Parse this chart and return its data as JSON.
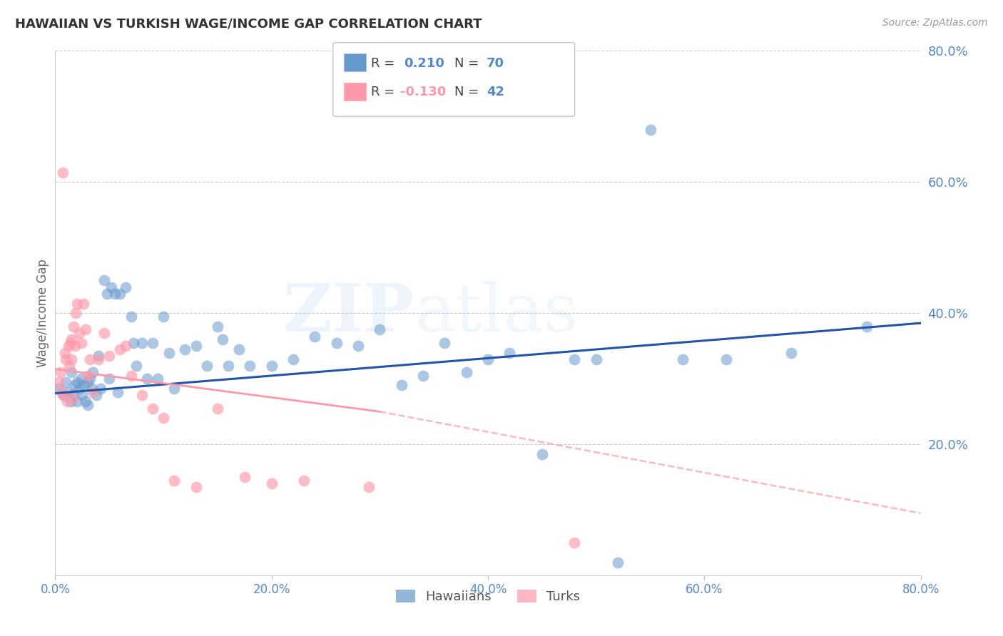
{
  "title": "HAWAIIAN VS TURKISH WAGE/INCOME GAP CORRELATION CHART",
  "source": "Source: ZipAtlas.com",
  "ylabel": "Wage/Income Gap",
  "xlim": [
    0.0,
    0.8
  ],
  "ylim": [
    0.0,
    0.8
  ],
  "xticks": [
    0.0,
    0.2,
    0.4,
    0.6,
    0.8
  ],
  "xtick_labels": [
    "0.0%",
    "20.0%",
    "40.0%",
    "60.0%",
    "80.0%"
  ],
  "right_yticks": [
    0.2,
    0.4,
    0.6,
    0.8
  ],
  "right_ytick_labels": [
    "20.0%",
    "40.0%",
    "60.0%",
    "80.0%"
  ],
  "hawaii_color": "#6699CC",
  "turk_color": "#FF99AA",
  "trend_hawaii_color": "#2255AA",
  "trend_turk_color": "#FF99AA",
  "watermark_zip_color": "#aaccee",
  "background_color": "#ffffff",
  "grid_color": "#cccccc",
  "axis_label_color": "#5588cc",
  "title_color": "#333333",
  "legend_hawaii_label": "Hawaiians",
  "legend_turk_label": "Turks",
  "hawaii_scatter_x": [
    0.003,
    0.008,
    0.01,
    0.012,
    0.014,
    0.015,
    0.016,
    0.018,
    0.02,
    0.02,
    0.022,
    0.024,
    0.025,
    0.026,
    0.028,
    0.03,
    0.03,
    0.032,
    0.034,
    0.035,
    0.038,
    0.04,
    0.042,
    0.045,
    0.048,
    0.05,
    0.052,
    0.055,
    0.058,
    0.06,
    0.065,
    0.07,
    0.072,
    0.075,
    0.08,
    0.085,
    0.09,
    0.095,
    0.1,
    0.105,
    0.11,
    0.12,
    0.13,
    0.14,
    0.15,
    0.155,
    0.16,
    0.17,
    0.18,
    0.2,
    0.22,
    0.24,
    0.26,
    0.28,
    0.3,
    0.32,
    0.34,
    0.36,
    0.38,
    0.4,
    0.42,
    0.45,
    0.48,
    0.5,
    0.52,
    0.55,
    0.58,
    0.62,
    0.68,
    0.75
  ],
  "hawaii_scatter_y": [
    0.285,
    0.275,
    0.295,
    0.28,
    0.265,
    0.31,
    0.275,
    0.29,
    0.295,
    0.265,
    0.285,
    0.3,
    0.275,
    0.29,
    0.265,
    0.295,
    0.26,
    0.3,
    0.285,
    0.31,
    0.275,
    0.335,
    0.285,
    0.45,
    0.43,
    0.3,
    0.44,
    0.43,
    0.28,
    0.43,
    0.44,
    0.395,
    0.355,
    0.32,
    0.355,
    0.3,
    0.355,
    0.3,
    0.395,
    0.34,
    0.285,
    0.345,
    0.35,
    0.32,
    0.38,
    0.36,
    0.32,
    0.345,
    0.32,
    0.32,
    0.33,
    0.365,
    0.355,
    0.35,
    0.375,
    0.29,
    0.305,
    0.355,
    0.31,
    0.33,
    0.34,
    0.185,
    0.33,
    0.33,
    0.02,
    0.68,
    0.33,
    0.33,
    0.34,
    0.38
  ],
  "turk_scatter_x": [
    0.003,
    0.005,
    0.006,
    0.007,
    0.008,
    0.009,
    0.01,
    0.011,
    0.012,
    0.013,
    0.014,
    0.015,
    0.015,
    0.016,
    0.017,
    0.018,
    0.019,
    0.02,
    0.022,
    0.024,
    0.026,
    0.028,
    0.03,
    0.032,
    0.035,
    0.04,
    0.045,
    0.05,
    0.06,
    0.065,
    0.07,
    0.08,
    0.09,
    0.1,
    0.11,
    0.13,
    0.15,
    0.175,
    0.2,
    0.23,
    0.29,
    0.48
  ],
  "turk_scatter_y": [
    0.295,
    0.31,
    0.28,
    0.615,
    0.275,
    0.34,
    0.33,
    0.265,
    0.35,
    0.32,
    0.355,
    0.36,
    0.33,
    0.27,
    0.38,
    0.35,
    0.4,
    0.415,
    0.37,
    0.355,
    0.415,
    0.375,
    0.305,
    0.33,
    0.28,
    0.33,
    0.37,
    0.335,
    0.345,
    0.35,
    0.305,
    0.275,
    0.255,
    0.24,
    0.145,
    0.135,
    0.255,
    0.15,
    0.14,
    0.145,
    0.135,
    0.05
  ],
  "hawaii_trend_x0": 0.0,
  "hawaii_trend_x1": 0.8,
  "hawaii_trend_y0": 0.278,
  "hawaii_trend_y1": 0.385,
  "turk_trend_solid_x0": 0.0,
  "turk_trend_solid_x1": 0.3,
  "turk_trend_solid_y0": 0.315,
  "turk_trend_solid_y1": 0.25,
  "turk_trend_dash_x0": 0.3,
  "turk_trend_dash_x1": 0.8,
  "turk_trend_dash_y0": 0.25,
  "turk_trend_dash_y1": 0.095
}
